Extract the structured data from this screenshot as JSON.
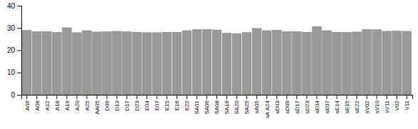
{
  "chart_data": {
    "type": "bar",
    "categories": [
      "A06",
      "A08",
      "A12",
      "A18",
      "A19",
      "A20",
      "A25",
      "AA05",
      "D09",
      "D13",
      "D17",
      "D23",
      "E04",
      "E07",
      "E15",
      "E16",
      "E22",
      "SA01",
      "SA06",
      "SA08",
      "SA18",
      "SA20",
      "SA25",
      "sA05",
      "sA A24",
      "sD03",
      "sD09",
      "sD17",
      "sD23",
      "sE04",
      "sE07",
      "sE14",
      "sE15",
      "sE22",
      "sV02",
      "sV10",
      "sV11",
      "V02",
      "V11"
    ],
    "values": [
      28.9,
      28.4,
      28.4,
      28.0,
      30.1,
      27.9,
      28.8,
      28.2,
      28.3,
      28.5,
      28.3,
      28.1,
      27.9,
      27.9,
      28.1,
      28.1,
      28.8,
      29.3,
      29.3,
      29.1,
      27.7,
      27.5,
      28.0,
      29.8,
      28.8,
      29.0,
      28.4,
      28.4,
      28.1,
      30.6,
      28.8,
      28.1,
      28.0,
      28.2,
      29.3,
      29.2,
      28.5,
      28.6,
      28.5
    ],
    "color": "#999999",
    "ylim": [
      0,
      40
    ],
    "yticks": [
      0,
      10,
      20,
      30,
      40
    ],
    "grid": false
  }
}
